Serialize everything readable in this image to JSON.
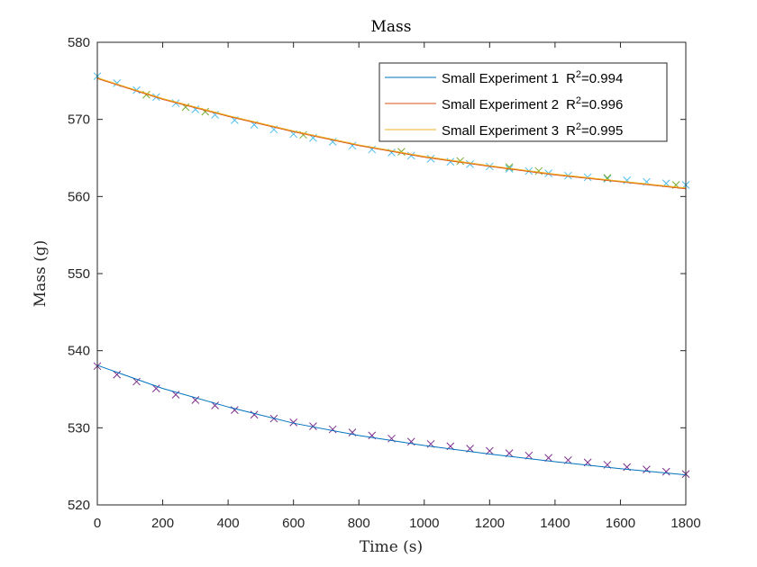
{
  "chart_data": {
    "type": "scatter",
    "title": "Mass",
    "xlabel": "Time (s)",
    "ylabel": "Mass (g)",
    "xlim": [
      0,
      1800
    ],
    "ylim": [
      520,
      580
    ],
    "xticks": [
      0,
      200,
      400,
      600,
      800,
      1000,
      1200,
      1400,
      1600,
      1800
    ],
    "yticks": [
      520,
      530,
      540,
      550,
      560,
      570,
      580
    ],
    "grid": false,
    "legend_position": "top-right",
    "legend": [
      {
        "name": "Small Experiment 1",
        "r2_label": "R",
        "r2_sup": "2",
        "r2_value": "=0.994",
        "color": "#0072BD"
      },
      {
        "name": "Small Experiment 2",
        "r2_label": "R",
        "r2_sup": "2",
        "r2_value": "=0.996",
        "color": "#D95319"
      },
      {
        "name": "Small Experiment 3",
        "r2_label": "R",
        "r2_sup": "2",
        "r2_value": "=0.995",
        "color": "#EDB120"
      }
    ],
    "fit_lines": [
      {
        "color": "#0072BD",
        "x": [
          0,
          200,
          400,
          600,
          800,
          1000,
          1200,
          1400,
          1600,
          1800
        ],
        "y": [
          538.1,
          535.1,
          532.7,
          530.6,
          529.0,
          527.7,
          526.6,
          525.6,
          524.7,
          523.9
        ]
      },
      {
        "color": "#D95319",
        "x": [
          0,
          200,
          400,
          600,
          800,
          1000,
          1200,
          1400,
          1600,
          1800
        ],
        "y": [
          575.3,
          572.6,
          570.4,
          568.4,
          566.6,
          565.1,
          563.9,
          562.8,
          561.9,
          561.0
        ]
      },
      {
        "color": "#EDB120",
        "x": [
          0,
          200,
          400,
          600,
          800,
          1000,
          1200,
          1400,
          1600,
          1800
        ],
        "y": [
          575.4,
          572.7,
          570.5,
          568.5,
          566.7,
          565.2,
          564.0,
          562.9,
          562.0,
          561.1
        ]
      }
    ],
    "markers": [
      {
        "color": "#4DBEEE",
        "x": [
          0,
          60,
          120,
          180,
          240,
          300,
          360,
          420,
          480,
          540,
          600,
          660,
          720,
          780,
          840,
          900,
          960,
          1020,
          1080,
          1140,
          1200,
          1260,
          1320,
          1380,
          1440,
          1500,
          1560,
          1620,
          1680,
          1740,
          1800
        ],
        "y": [
          575.6,
          574.7,
          573.8,
          572.9,
          572.1,
          571.3,
          570.6,
          569.9,
          569.3,
          568.7,
          568.1,
          567.6,
          567.1,
          566.6,
          566.1,
          565.7,
          565.3,
          564.9,
          564.5,
          564.2,
          563.9,
          563.6,
          563.3,
          563.0,
          562.7,
          562.5,
          562.3,
          562.1,
          561.9,
          561.7,
          561.5
        ]
      },
      {
        "color": "#77AC30",
        "x": [
          150,
          270,
          330,
          630,
          930,
          1110,
          1260,
          1350,
          1560,
          1770
        ],
        "y": [
          573.2,
          571.6,
          571.0,
          568.0,
          565.8,
          564.6,
          563.8,
          563.3,
          562.4,
          561.5
        ]
      },
      {
        "color": "#7E2F8E",
        "x": [
          0,
          60,
          120,
          180,
          240,
          300,
          360,
          420,
          480,
          540,
          600,
          660,
          720,
          780,
          840,
          900,
          960,
          1020,
          1080,
          1140,
          1200,
          1260,
          1320,
          1380,
          1440,
          1500,
          1560,
          1620,
          1680,
          1740,
          1800
        ],
        "y": [
          538.0,
          536.9,
          536.0,
          535.1,
          534.3,
          533.6,
          532.9,
          532.3,
          531.7,
          531.2,
          530.7,
          530.2,
          529.8,
          529.4,
          529.0,
          528.6,
          528.2,
          527.9,
          527.6,
          527.3,
          527.0,
          526.7,
          526.4,
          526.1,
          525.8,
          525.5,
          525.2,
          524.9,
          524.6,
          524.3,
          524.0
        ]
      }
    ]
  }
}
